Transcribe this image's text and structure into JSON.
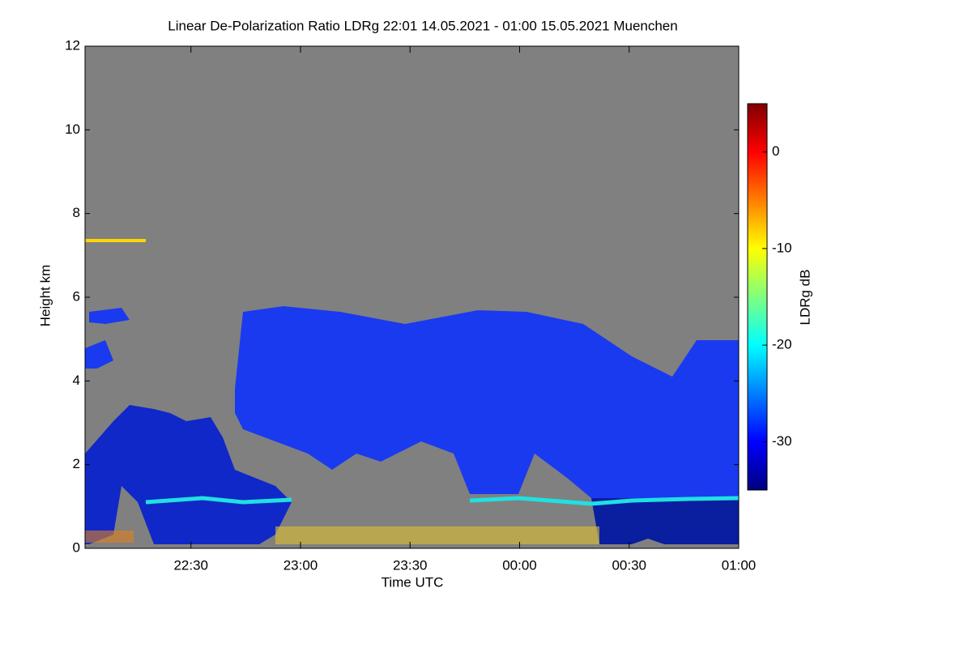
{
  "chart_data": {
    "type": "heatmap",
    "title": "Linear De-Polarization Ratio LDRg   22:01 14.05.2021 - 01:00 15.05.2021 Muenchen",
    "x_label": "Time UTC",
    "y_label": "Height km",
    "colorbar_label": "LDRg dB",
    "xlim": [
      22.0167,
      25
    ],
    "xticks": [
      {
        "value": 22.5,
        "label": "22:30"
      },
      {
        "value": 23,
        "label": "23:00"
      },
      {
        "value": 23.5,
        "label": "23:30"
      },
      {
        "value": 24,
        "label": "00:00"
      },
      {
        "value": 24.5,
        "label": "00:30"
      },
      {
        "value": 25,
        "label": "01:00"
      }
    ],
    "ylim": [
      0,
      12
    ],
    "yticks": [
      0,
      2,
      4,
      6,
      8,
      10,
      12
    ],
    "clim": [
      -35,
      5
    ],
    "cticks": [
      -30,
      -20,
      -10,
      0
    ],
    "colormap": [
      "#00007f",
      "#0000ff",
      "#007fff",
      "#00ffff",
      "#7fff7f",
      "#ffff00",
      "#ff7f00",
      "#ff0000",
      "#7f0000"
    ],
    "background_color": "#808080"
  }
}
